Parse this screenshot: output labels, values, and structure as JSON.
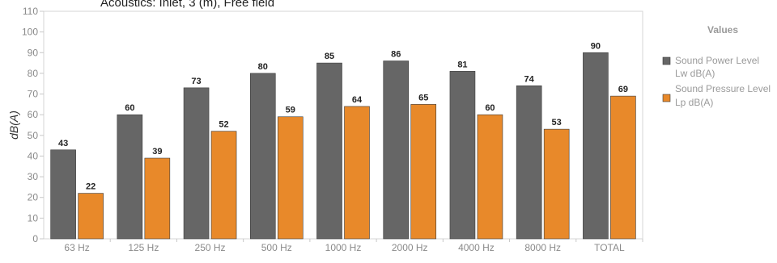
{
  "chart_data": {
    "type": "bar",
    "title": "Acoustics: Inlet, 3 (m), Free field",
    "ylabel": "dB(A)",
    "xlabel": "",
    "ylim": [
      0,
      110
    ],
    "yticks": [
      0,
      10,
      20,
      30,
      40,
      50,
      60,
      70,
      80,
      90,
      100,
      110
    ],
    "grid": false,
    "legend_position": "right",
    "legend_title": "Values",
    "categories": [
      "63 Hz",
      "125 Hz",
      "250 Hz",
      "500 Hz",
      "1000 Hz",
      "2000 Hz",
      "4000 Hz",
      "8000 Hz",
      "TOTAL"
    ],
    "series": [
      {
        "name": "Sound Power Level Lw dB(A)",
        "legend_lines": [
          "Sound Power Level",
          "Lw dB(A)"
        ],
        "color": "#666666",
        "values": [
          43,
          60,
          73,
          80,
          85,
          86,
          81,
          74,
          90
        ]
      },
      {
        "name": "Sound Pressure Level Lp dB(A)",
        "legend_lines": [
          "Sound Pressure Level",
          "Lp dB(A)"
        ],
        "color": "#e8892a",
        "values": [
          22,
          39,
          52,
          59,
          64,
          65,
          60,
          53,
          69
        ]
      }
    ]
  }
}
